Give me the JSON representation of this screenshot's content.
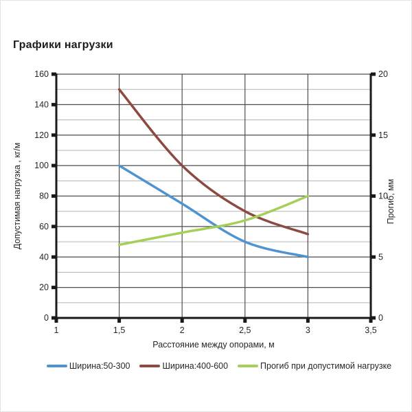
{
  "page": {
    "title": "Графики нагрузки"
  },
  "chart_data": {
    "type": "line",
    "x": [
      1.5,
      2,
      2.5,
      3
    ],
    "series": [
      {
        "name": "Ширина:50-300",
        "axis": "left",
        "color": "#4f94d0",
        "values": [
          100,
          75,
          50,
          40
        ]
      },
      {
        "name": "Ширина:400-600",
        "axis": "left",
        "color": "#8c4a40",
        "values": [
          150,
          100,
          70,
          55
        ]
      },
      {
        "name": "Прогиб при допустимой нагрузке",
        "axis": "right",
        "color": "#a5cf58",
        "values": [
          6,
          7,
          8,
          10
        ]
      }
    ],
    "x_axis": {
      "label": "Расстояние между опорами, м",
      "min": 1,
      "max": 3.5,
      "ticks": [
        1,
        1.5,
        2,
        2.5,
        3,
        3.5
      ],
      "tick_labels": [
        "1",
        "1,5",
        "2",
        "2,5",
        "3",
        "3,5"
      ]
    },
    "y_axis_left": {
      "label": "Допустимая нагрузка , кг/м",
      "min": 0,
      "max": 160,
      "major_step": 20,
      "minor_step": 10,
      "tick_labels": [
        "0",
        "20",
        "40",
        "60",
        "80",
        "100",
        "120",
        "140",
        "160"
      ]
    },
    "y_axis_right": {
      "label": "Прогиб, мм",
      "min": 0,
      "max": 20,
      "major_step": 5,
      "tick_labels": [
        "0",
        "5",
        "10",
        "15",
        "20"
      ]
    },
    "legend_position": "bottom",
    "grid": true
  }
}
